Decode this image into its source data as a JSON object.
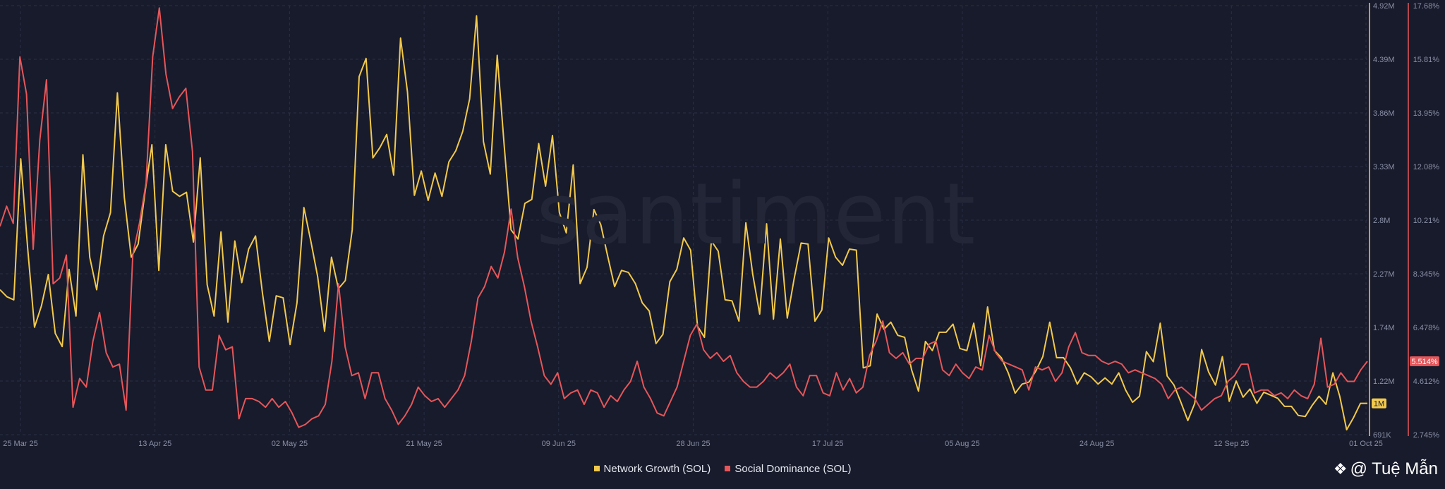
{
  "chart_data": {
    "type": "line",
    "watermark": "santiment",
    "x_labels": [
      "25 Mar 25",
      "13 Apr 25",
      "02 May 25",
      "21 May 25",
      "09 Jun 25",
      "28 Jun 25",
      "17 Jul 25",
      "05 Aug 25",
      "24 Aug 25",
      "12 Sep 25",
      "01 Oct 25"
    ],
    "left_axis": {
      "labels": [
        "4.92M",
        "4.39M",
        "3.86M",
        "3.33M",
        "2.8M",
        "2.27M",
        "1.74M",
        "1.22M",
        "691K"
      ],
      "min": 691000,
      "max": 4920000
    },
    "right_axis": {
      "labels": [
        "17.68%",
        "15.81%",
        "13.95%",
        "12.08%",
        "10.21%",
        "8.345%",
        "6.478%",
        "4.612%",
        "2.745%"
      ],
      "min": 2.745,
      "max": 17.68
    },
    "current_labels": {
      "network_growth": "1M",
      "social_dominance": "5.514%"
    },
    "series": [
      {
        "name": "Network Growth (SOL)",
        "color": "#f2c94c",
        "unit": "addresses",
        "values": [
          2120000,
          2050000,
          2020000,
          3410000,
          2530000,
          1750000,
          1960000,
          2270000,
          1690000,
          1560000,
          2320000,
          1860000,
          3450000,
          2440000,
          2120000,
          2650000,
          2880000,
          4060000,
          3030000,
          2440000,
          2570000,
          3080000,
          3550000,
          2310000,
          3550000,
          3090000,
          3040000,
          3080000,
          2590000,
          3420000,
          2170000,
          1860000,
          2690000,
          1800000,
          2600000,
          2190000,
          2520000,
          2650000,
          2090000,
          1610000,
          2060000,
          2040000,
          1580000,
          1990000,
          2930000,
          2600000,
          2250000,
          1710000,
          2440000,
          2130000,
          2210000,
          2710000,
          4220000,
          4400000,
          3420000,
          3520000,
          3650000,
          3250000,
          4600000,
          4070000,
          3050000,
          3290000,
          3000000,
          3270000,
          3040000,
          3380000,
          3490000,
          3680000,
          4000000,
          4820000,
          3580000,
          3260000,
          4430000,
          3550000,
          2710000,
          2620000,
          2970000,
          3010000,
          3560000,
          3140000,
          3640000,
          2880000,
          2680000,
          3350000,
          2180000,
          2340000,
          2910000,
          2760000,
          2450000,
          2150000,
          2310000,
          2290000,
          2180000,
          1990000,
          1910000,
          1590000,
          1680000,
          2200000,
          2320000,
          2630000,
          2510000,
          1760000,
          1650000,
          2600000,
          2500000,
          2020000,
          2010000,
          1810000,
          2780000,
          2270000,
          1880000,
          2770000,
          1830000,
          2620000,
          1840000,
          2230000,
          2580000,
          2570000,
          1810000,
          1920000,
          2630000,
          2440000,
          2360000,
          2520000,
          2510000,
          1350000,
          1370000,
          1880000,
          1730000,
          1800000,
          1670000,
          1650000,
          1330000,
          1120000,
          1610000,
          1520000,
          1700000,
          1700000,
          1780000,
          1540000,
          1520000,
          1790000,
          1370000,
          1950000,
          1520000,
          1450000,
          1300000,
          1100000,
          1190000,
          1210000,
          1320000,
          1460000,
          1800000,
          1450000,
          1450000,
          1350000,
          1190000,
          1300000,
          1260000,
          1190000,
          1250000,
          1190000,
          1300000,
          1130000,
          1010000,
          1070000,
          1510000,
          1410000,
          1790000,
          1270000,
          1180000,
          1010000,
          830000,
          1000000,
          1530000,
          1310000,
          1180000,
          1460000,
          1020000,
          1220000,
          1060000,
          1140000,
          1000000,
          1110000,
          1080000,
          1050000,
          970000,
          970000,
          880000,
          870000,
          980000,
          1070000,
          990000,
          1300000,
          1070000,
          740000,
          860000,
          1000000,
          1000000
        ]
      },
      {
        "name": "Social Dominance (SOL)",
        "color": "#e5565a",
        "unit": "percent",
        "values": [
          10.0,
          10.7,
          10.1,
          15.9,
          14.6,
          9.2,
          13.0,
          15.1,
          8.0,
          8.2,
          9.0,
          3.7,
          4.7,
          4.4,
          6.0,
          7.0,
          5.6,
          5.1,
          5.2,
          3.6,
          9.0,
          10.1,
          11.5,
          15.9,
          17.6,
          15.3,
          14.1,
          14.5,
          14.8,
          12.6,
          5.1,
          4.3,
          4.3,
          6.2,
          5.7,
          5.8,
          3.3,
          4.0,
          4.0,
          3.9,
          3.7,
          4.0,
          3.7,
          3.9,
          3.5,
          3.0,
          3.1,
          3.3,
          3.4,
          3.8,
          5.3,
          8.0,
          5.8,
          4.8,
          4.9,
          4.0,
          4.9,
          4.9,
          4.0,
          3.6,
          3.1,
          3.4,
          3.8,
          4.4,
          4.1,
          3.9,
          4.0,
          3.7,
          4.0,
          4.3,
          4.8,
          6.0,
          7.5,
          7.9,
          8.6,
          8.2,
          9.1,
          10.6,
          8.9,
          7.9,
          6.7,
          5.8,
          4.8,
          4.5,
          4.9,
          4.0,
          4.2,
          4.3,
          3.8,
          4.3,
          4.2,
          3.7,
          4.1,
          3.9,
          4.3,
          4.6,
          5.3,
          4.4,
          4.0,
          3.5,
          3.4,
          3.9,
          4.4,
          5.3,
          6.2,
          6.6,
          5.7,
          5.4,
          5.6,
          5.3,
          5.5,
          4.9,
          4.6,
          4.4,
          4.4,
          4.6,
          4.9,
          4.7,
          4.9,
          5.2,
          4.4,
          4.1,
          4.8,
          4.8,
          4.2,
          4.1,
          4.9,
          4.3,
          4.7,
          4.2,
          4.4,
          5.5,
          6.0,
          6.7,
          5.6,
          5.4,
          5.6,
          5.2,
          5.4,
          5.4,
          5.9,
          6.0,
          5.0,
          4.8,
          5.2,
          4.9,
          4.7,
          5.1,
          5.0,
          6.2,
          5.6,
          5.3,
          5.2,
          5.1,
          5.0,
          4.3,
          5.1,
          5.0,
          5.1,
          4.6,
          4.9,
          5.8,
          6.3,
          5.6,
          5.5,
          5.5,
          5.3,
          5.2,
          5.3,
          5.2,
          4.9,
          5.0,
          4.9,
          4.8,
          4.7,
          4.5,
          4.0,
          4.3,
          4.4,
          4.2,
          4.0,
          3.6,
          3.8,
          4.0,
          4.1,
          4.6,
          4.8,
          5.2,
          5.2,
          4.2,
          4.3,
          4.3,
          4.1,
          4.2,
          4.0,
          4.3,
          4.1,
          4.0,
          4.5,
          6.1,
          4.4,
          4.5,
          4.9,
          4.6,
          4.6,
          5.0,
          5.3
        ]
      }
    ]
  },
  "legend": {
    "network_growth": "Network Growth (SOL)",
    "social_dominance": "Social Dominance (SOL)"
  },
  "credit": {
    "icon": "binance-square-icon",
    "text": "@ Tuệ Mẫn"
  }
}
